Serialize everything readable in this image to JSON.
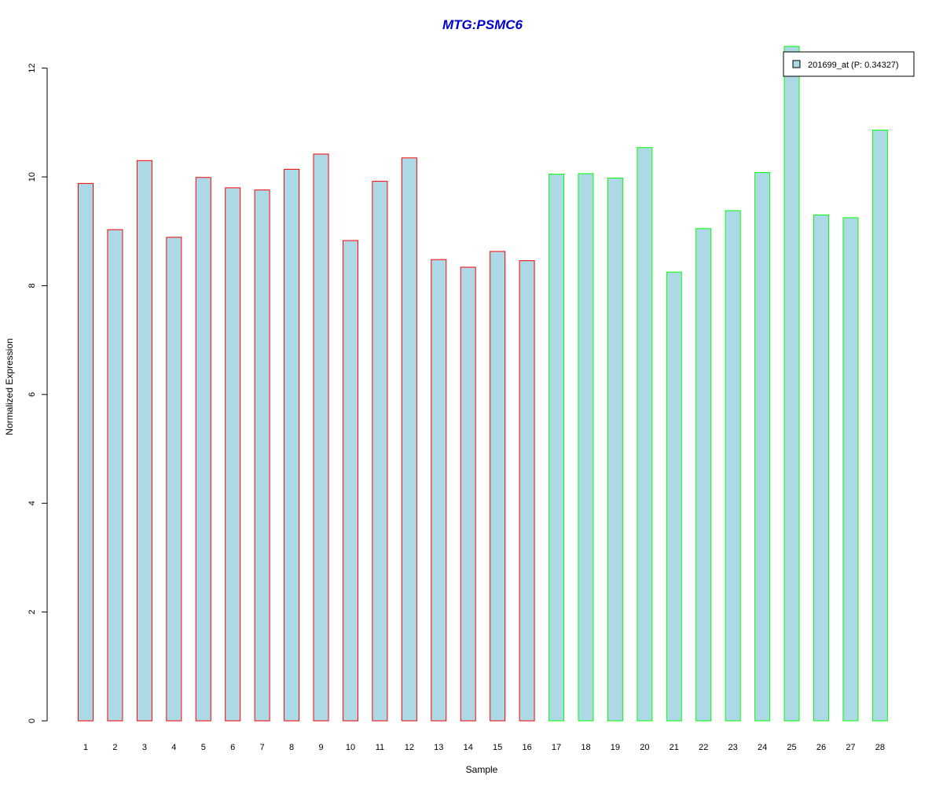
{
  "colors": {
    "bar_fill": "#add8e6",
    "group1_border": "#ff0000",
    "group2_border": "#00ff00",
    "title": "#0000cd",
    "axis": "#000000"
  },
  "chart_data": {
    "type": "bar",
    "title": "MTG:PSMC6",
    "xlabel": "Sample",
    "ylabel": "Normalized Expression",
    "categories": [
      "1",
      "2",
      "3",
      "4",
      "5",
      "6",
      "7",
      "8",
      "9",
      "10",
      "11",
      "12",
      "13",
      "14",
      "15",
      "16",
      "17",
      "18",
      "19",
      "20",
      "21",
      "22",
      "23",
      "24",
      "25",
      "26",
      "27",
      "28"
    ],
    "series": [
      {
        "name": "201699_at (P: 0.34327)",
        "values": [
          9.88,
          9.03,
          10.3,
          8.89,
          9.99,
          9.8,
          9.76,
          10.14,
          10.42,
          8.83,
          9.92,
          10.35,
          8.48,
          8.34,
          8.63,
          8.46,
          10.05,
          10.06,
          9.98,
          10.54,
          8.25,
          9.05,
          9.38,
          10.08,
          12.4,
          9.3,
          9.25,
          10.86
        ]
      }
    ],
    "group_border": [
      "group1",
      "group1",
      "group1",
      "group1",
      "group1",
      "group1",
      "group1",
      "group1",
      "group1",
      "group1",
      "group1",
      "group1",
      "group1",
      "group1",
      "group1",
      "group1",
      "group2",
      "group2",
      "group2",
      "group2",
      "group2",
      "group2",
      "group2",
      "group2",
      "group2",
      "group2",
      "group2",
      "group2"
    ],
    "ylim": [
      0,
      12.4
    ],
    "yticks": [
      "0",
      "2",
      "4",
      "6",
      "8",
      "10",
      "12"
    ],
    "grid": false,
    "legend_position": "top-right"
  }
}
